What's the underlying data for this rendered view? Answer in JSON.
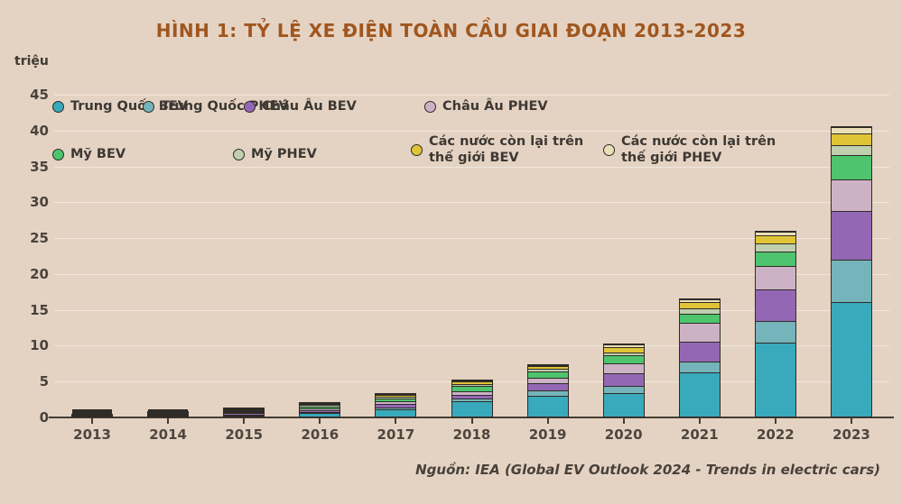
{
  "figure": {
    "source": "Nguồn: IEA (Global EV Outlook 2024 - Trends in electric cars)"
  },
  "colors": {
    "background": "#e4d3c3",
    "title_text": "#a0561e",
    "axis_line": "#453d35",
    "gridline": "rgba(255,255,255,0.45)",
    "bar_border": "#2f2b26"
  },
  "chart_data": {
    "type": "bar",
    "stacked": true,
    "title": "HÌNH 1: TỶ LỆ XE ĐIỆN TOÀN CẦU GIAI ĐOẠN 2013-2023",
    "unit_label": "triệu",
    "xlabel": "",
    "ylabel": "triệu",
    "ylim": [
      0,
      45
    ],
    "yticks": [
      0,
      5,
      10,
      15,
      20,
      25,
      30,
      35,
      40,
      45
    ],
    "grid": true,
    "legend_position": "top-inside",
    "categories": [
      "2013",
      "2014",
      "2015",
      "2016",
      "2017",
      "2018",
      "2019",
      "2020",
      "2021",
      "2022",
      "2023"
    ],
    "series": [
      {
        "name": "Trung Quốc BEV",
        "color": "#39a9bc",
        "values": [
          0.05,
          0.1,
          0.25,
          0.55,
          1.05,
          2.2,
          2.95,
          3.3,
          6.2,
          10.4,
          16.0
        ]
      },
      {
        "name": "Trung Quốc PHEV",
        "color": "#74b4ba",
        "values": [
          0.01,
          0.03,
          0.08,
          0.12,
          0.25,
          0.35,
          0.8,
          1.05,
          1.5,
          3.0,
          6.0
        ]
      },
      {
        "name": "Châu Âu BEV",
        "color": "#9467b5",
        "values": [
          0.06,
          0.12,
          0.2,
          0.35,
          0.55,
          0.6,
          1.0,
          1.75,
          2.8,
          4.4,
          6.7
        ]
      },
      {
        "name": "Châu Âu PHEV",
        "color": "#cdb2c6",
        "values": [
          0.04,
          0.1,
          0.2,
          0.3,
          0.4,
          0.45,
          0.75,
          1.4,
          2.7,
          3.3,
          4.5
        ]
      },
      {
        "name": "Mỹ BEV",
        "color": "#4dc46d",
        "values": [
          0.1,
          0.16,
          0.21,
          0.3,
          0.4,
          0.75,
          0.9,
          1.15,
          1.3,
          2.0,
          3.4
        ]
      },
      {
        "name": "Mỹ PHEV",
        "color": "#c0cfae",
        "values": [
          0.07,
          0.13,
          0.19,
          0.26,
          0.35,
          0.35,
          0.4,
          0.45,
          0.75,
          1.1,
          1.3
        ]
      },
      {
        "name": "Các nước còn lại trên thế giới BEV",
        "color": "#e0c437",
        "values": [
          0.05,
          0.07,
          0.12,
          0.12,
          0.15,
          0.3,
          0.35,
          0.75,
          0.8,
          1.25,
          1.7
        ]
      },
      {
        "name": "Các nước còn lại trên thế giới PHEV",
        "color": "#eadfb8",
        "values": [
          0.02,
          0.03,
          0.04,
          0.05,
          0.06,
          0.1,
          0.1,
          0.35,
          0.4,
          0.45,
          0.9
        ]
      }
    ],
    "totals": [
      0.4,
      0.74,
      1.29,
      2.05,
      3.21,
      5.1,
      7.25,
      10.2,
      16.45,
      25.9,
      40.5
    ]
  }
}
